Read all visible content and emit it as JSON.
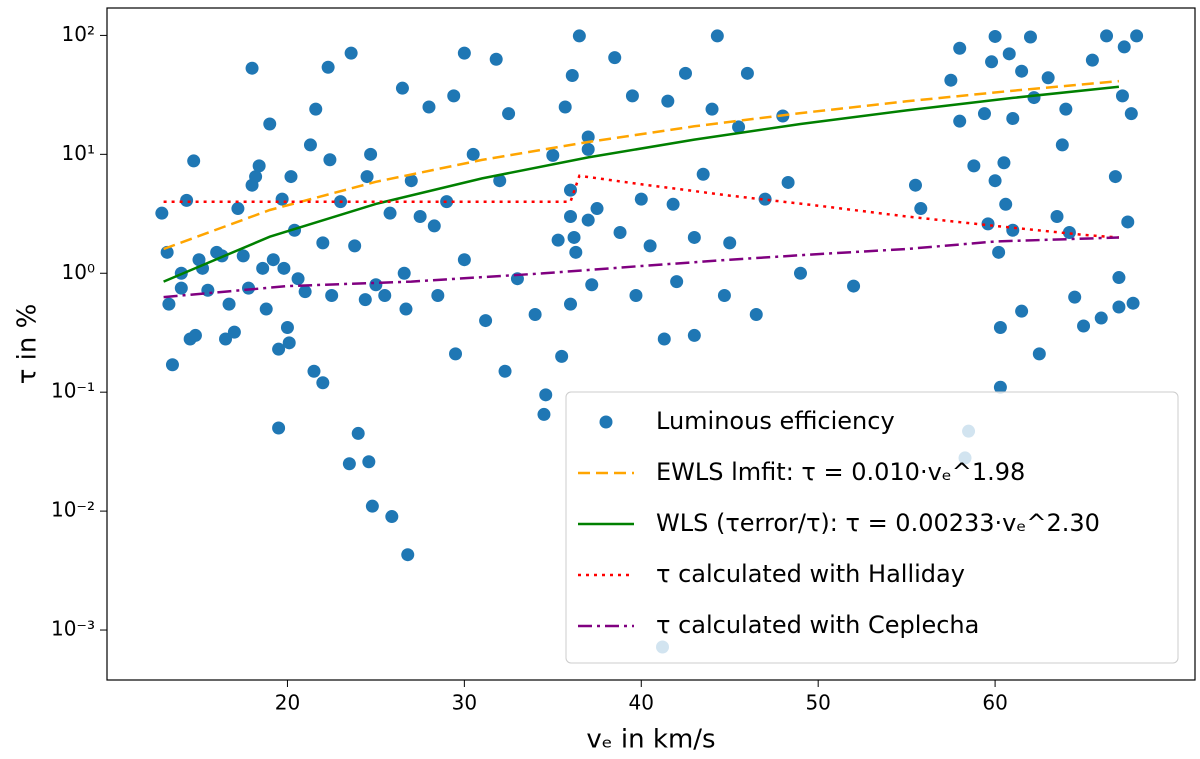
{
  "chart_data": {
    "type": "scatter",
    "xlabel": "vₑ in km/s",
    "ylabel": "τ in %",
    "yscale": "log",
    "xlim": [
      9.8,
      71.3
    ],
    "ylim": [
      0.00038,
      170
    ],
    "xticks": [
      20,
      30,
      40,
      50,
      60
    ],
    "yticks": [
      {
        "value": 0.001,
        "label": "10⁻³"
      },
      {
        "value": 0.01,
        "label": "10⁻²"
      },
      {
        "value": 0.1,
        "label": "10⁻¹"
      },
      {
        "value": 1,
        "label": "10⁰"
      },
      {
        "value": 10,
        "label": "10¹"
      },
      {
        "value": 100,
        "label": "10²"
      }
    ],
    "legend": "lower right",
    "series": [
      {
        "name": "Luminous efficiency",
        "kind": "points",
        "color": "#1f77b4",
        "x": [
          12.9,
          13.2,
          13.3,
          13.5,
          14,
          14,
          14.3,
          14.5,
          14.7,
          14.8,
          15,
          15.2,
          15.5,
          16,
          16.3,
          16.5,
          16.7,
          17,
          17.2,
          17.5,
          17.8,
          18,
          18,
          18.2,
          18.4,
          18.6,
          18.8,
          19,
          19.2,
          19.5,
          19.5,
          19.7,
          19.8,
          20,
          20.1,
          20.2,
          20.4,
          20.6,
          21,
          21.3,
          21.5,
          21.6,
          22,
          22,
          22.3,
          22.4,
          22.5,
          23,
          23.5,
          23.6,
          23.8,
          24,
          24.4,
          24.5,
          24.6,
          24.7,
          24.8,
          25,
          25.5,
          25.8,
          25.9,
          26.5,
          26.6,
          26.7,
          26.8,
          27,
          27.5,
          28,
          28.3,
          28.5,
          29,
          29.4,
          29.5,
          30,
          30,
          30.5,
          31.2,
          31.8,
          32,
          32.3,
          32.5,
          33,
          34,
          34.5,
          34.6,
          35,
          35.3,
          35.5,
          35.7,
          36,
          36,
          36,
          36.1,
          36.2,
          36.3,
          36.5,
          37,
          37,
          37,
          37.2,
          37.5,
          38.5,
          38.8,
          39.5,
          39.7,
          40,
          40.5,
          41.2,
          41.3,
          41.5,
          41.8,
          42,
          42.5,
          43,
          43,
          43.5,
          44,
          44.3,
          44.7,
          45,
          45.5,
          46,
          46.5,
          47,
          48,
          48.3,
          49,
          52,
          55.5,
          55.8,
          57.5,
          58,
          58,
          58.3,
          58.5,
          58.8,
          59.4,
          59.6,
          59.8,
          60,
          60,
          60.2,
          60.3,
          60.3,
          60.5,
          60.6,
          60.8,
          61,
          61,
          61.5,
          61.5,
          62,
          62.2,
          62.5,
          63,
          63.5,
          63.8,
          64,
          64.2,
          64.5,
          65,
          65.5,
          66,
          66.3,
          66.8,
          67,
          67,
          67.2,
          67.3,
          67.5,
          67.7,
          67.8,
          68
        ],
        "values": [
          3.2,
          1.5,
          0.55,
          0.17,
          1.0,
          0.75,
          4.1,
          0.28,
          8.8,
          0.3,
          1.3,
          1.1,
          0.72,
          1.5,
          1.4,
          0.28,
          0.55,
          0.32,
          3.5,
          1.4,
          0.75,
          53,
          5.5,
          6.5,
          8,
          1.1,
          0.5,
          18,
          1.3,
          0.05,
          0.23,
          4.2,
          1.1,
          0.35,
          0.26,
          6.5,
          2.3,
          0.9,
          0.7,
          12,
          0.15,
          24,
          0.12,
          1.8,
          54,
          9,
          0.65,
          4,
          0.025,
          71,
          1.7,
          0.045,
          0.6,
          6.5,
          0.026,
          10,
          0.011,
          0.8,
          0.65,
          3.2,
          0.009,
          36,
          1.0,
          0.5,
          0.0043,
          6,
          3,
          25,
          2.5,
          0.65,
          4,
          31,
          0.21,
          71,
          1.3,
          10,
          0.4,
          63,
          6,
          0.15,
          22,
          0.9,
          0.45,
          0.065,
          0.095,
          9.8,
          1.9,
          0.2,
          25,
          5,
          0.55,
          3,
          46,
          2,
          1.5,
          99,
          11,
          14,
          2.8,
          0.8,
          3.5,
          65,
          2.2,
          31,
          0.65,
          4.2,
          1.7,
          0.00072,
          0.28,
          28,
          3.8,
          0.85,
          48,
          2,
          0.3,
          6.8,
          24,
          99,
          0.65,
          1.8,
          17,
          48,
          0.45,
          4.2,
          21,
          5.8,
          1.0,
          0.78,
          5.5,
          3.5,
          42,
          78,
          19,
          0.028,
          0.047,
          8,
          22,
          2.6,
          60,
          98,
          6,
          1.5,
          0.35,
          0.11,
          8.5,
          3.8,
          70,
          20,
          2.3,
          50,
          0.48,
          97,
          30,
          0.21,
          44,
          3,
          12,
          24,
          2.2,
          0.63,
          0.36,
          62,
          0.42,
          99,
          6.5,
          0.92,
          0.52,
          31,
          80,
          2.7,
          22,
          0.56,
          99
        ]
      },
      {
        "name": "EWLS lmfit: τ = 0.010·vₑ^1.98",
        "kind": "line",
        "linestyle": "dashed",
        "color": "#ffa500",
        "x": [
          13,
          19,
          25,
          31,
          37,
          43,
          49,
          55,
          61,
          67
        ],
        "values": [
          1.6,
          3.4,
          5.87,
          8.97,
          12.7,
          17.2,
          22.2,
          27.9,
          34.3,
          41.3
        ]
      },
      {
        "name": "WLS (τerror/τ): τ = 0.00233·vₑ^2.30",
        "kind": "line",
        "linestyle": "solid",
        "color": "#008000",
        "x": [
          13,
          19,
          25,
          31,
          37,
          43,
          49,
          55,
          61,
          67
        ],
        "values": [
          0.85,
          2.03,
          3.83,
          6.27,
          9.43,
          13.3,
          18.0,
          23.4,
          29.8,
          37.0
        ]
      },
      {
        "name": "τ calculated with Halliday",
        "kind": "line",
        "linestyle": "dotted",
        "color": "#ff0000",
        "x": [
          13,
          36,
          36.5,
          40,
          45,
          50,
          55,
          60,
          65,
          67
        ],
        "values": [
          4,
          4,
          6.6,
          5.6,
          4.5,
          3.7,
          3.0,
          2.5,
          2.1,
          2.0
        ]
      },
      {
        "name": "τ calculated with Ceplecha",
        "kind": "line",
        "linestyle": "dashdot",
        "color": "#800080",
        "x": [
          13,
          20,
          27,
          34.5,
          40,
          45,
          50,
          55,
          60,
          67
        ],
        "values": [
          0.63,
          0.78,
          0.85,
          1.0,
          1.15,
          1.3,
          1.45,
          1.6,
          1.85,
          2.0
        ]
      }
    ]
  }
}
